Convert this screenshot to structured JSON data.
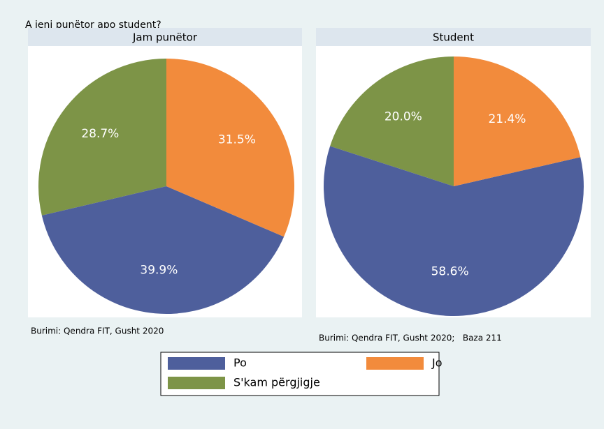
{
  "title": "A jeni punëtor apo student?",
  "chart_data": [
    {
      "type": "pie",
      "title": "Jam punëtor",
      "categories": [
        "Po",
        "Jo",
        "S'kam përgjigje"
      ],
      "values": [
        39.9,
        31.5,
        28.7
      ],
      "value_labels": [
        "39.9%",
        "31.5%",
        "28.7%"
      ],
      "colors": [
        "#4e5f9c",
        "#f28b3c",
        "#7d9447"
      ],
      "note": "Burimi: Qendra FIT, Gusht 2020"
    },
    {
      "type": "pie",
      "title": "Student",
      "categories": [
        "Po",
        "Jo",
        "S'kam përgjigje"
      ],
      "values": [
        58.6,
        21.4,
        20.0
      ],
      "value_labels": [
        "58.6%",
        "21.4%",
        "20.0%"
      ],
      "colors": [
        "#4e5f9c",
        "#f28b3c",
        "#7d9447"
      ],
      "note": "Burimi: Qendra FIT, Gusht 2020;   Baza 211"
    }
  ]
}
